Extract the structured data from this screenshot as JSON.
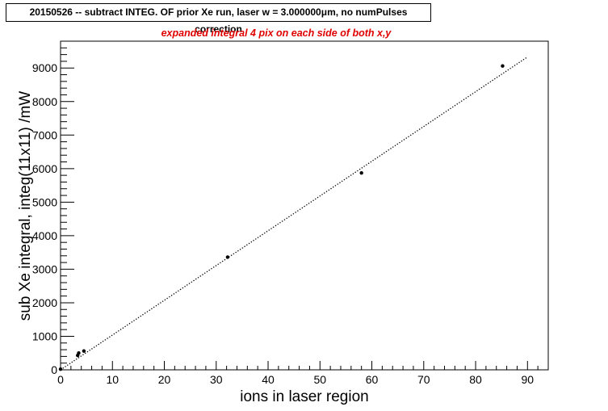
{
  "chart_data": {
    "type": "scatter",
    "title": "20150526 -- subtract INTEG. OF prior Xe run, laser w = 3.000000μm, no numPulses correction",
    "subtitle": "expanded integral 4 pix on each side of both x,y",
    "xlabel": "ions in laser region",
    "ylabel": "sub Xe integral, integ(11x11)   /mW",
    "xlim": [
      0,
      94
    ],
    "ylim": [
      0,
      9800
    ],
    "x_ticks": [
      0,
      10,
      20,
      30,
      40,
      50,
      60,
      70,
      80,
      90
    ],
    "y_ticks": [
      0,
      1000,
      2000,
      3000,
      4000,
      5000,
      6000,
      7000,
      8000,
      9000
    ],
    "grid": false,
    "series": [
      {
        "x": [
          0,
          3.3,
          3.5,
          4.5,
          32.2,
          58.0,
          85.2
        ],
        "y": [
          20,
          430,
          500,
          560,
          3360,
          5870,
          9060
        ]
      }
    ],
    "fit_line": {
      "x": [
        0,
        90
      ],
      "y": [
        0,
        9330
      ],
      "style": "dotted"
    },
    "colors": {
      "points": "#000000",
      "fit": "#000000",
      "subtitle": "#e00000"
    }
  }
}
